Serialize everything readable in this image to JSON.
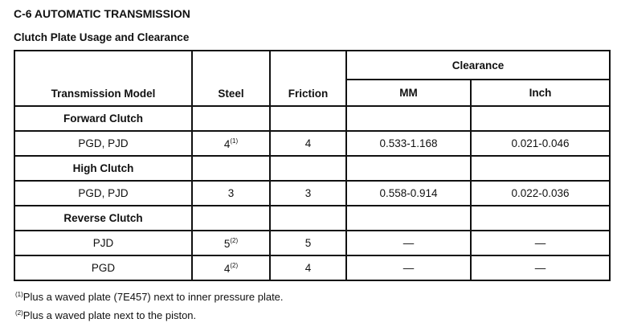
{
  "title": "C-6 AUTOMATIC TRANSMISSION",
  "subtitle": "Clutch Plate Usage and Clearance",
  "table": {
    "headers": {
      "model": "Transmission Model",
      "steel": "Steel",
      "friction": "Friction",
      "clearance": "Clearance",
      "mm": "MM",
      "inch": "Inch"
    },
    "groups": [
      {
        "label": "Forward Clutch",
        "rows": [
          {
            "model": "PGD, PJD",
            "steel": "4",
            "steel_note": "(1)",
            "friction": "4",
            "mm": "0.533-1.168",
            "inch": "0.021-0.046"
          }
        ]
      },
      {
        "label": "High Clutch",
        "rows": [
          {
            "model": "PGD, PJD",
            "steel": "3",
            "steel_note": "",
            "friction": "3",
            "mm": "0.558-0.914",
            "inch": "0.022-0.036"
          }
        ]
      },
      {
        "label": "Reverse Clutch",
        "rows": [
          {
            "model": "PJD",
            "steel": "5",
            "steel_note": "(2)",
            "friction": "5",
            "mm": "—",
            "inch": "—"
          },
          {
            "model": "PGD",
            "steel": "4",
            "steel_note": "(2)",
            "friction": "4",
            "mm": "—",
            "inch": "—"
          }
        ]
      }
    ]
  },
  "footnotes": [
    {
      "mark": "(1)",
      "text": "Plus a waved plate (7E457) next to inner pressure plate."
    },
    {
      "mark": "(2)",
      "text": "Plus a waved plate next to the piston."
    }
  ]
}
